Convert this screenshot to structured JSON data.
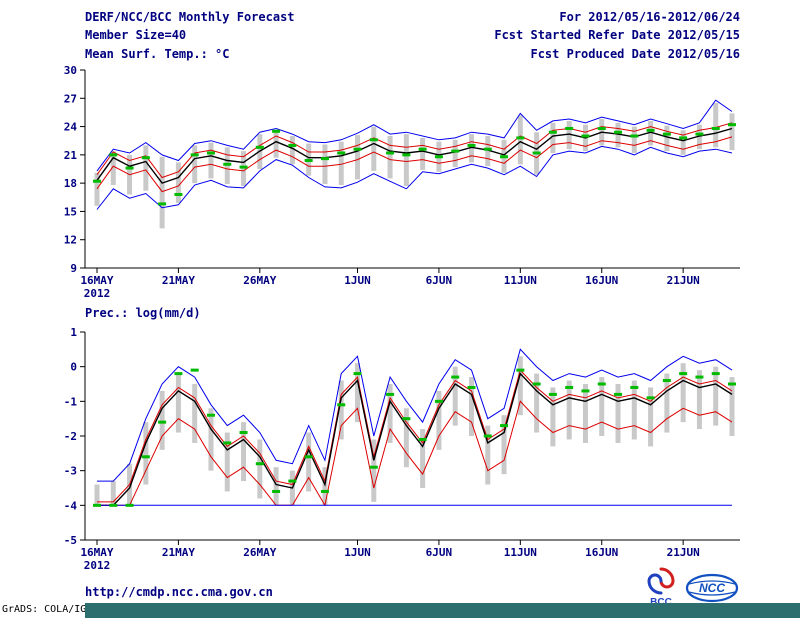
{
  "colors": {
    "text": "#000080",
    "footer_bar": "#2d6e6e",
    "axis": "#000000"
  },
  "header": {
    "title": "DERF/NCC/BCC Monthly Forecast",
    "member_size": "Member Size=40",
    "for_range": "For 2012/05/16-2012/06/24",
    "refer_date": "Fcst Started Refer Date 2012/05/15",
    "produced_date": "Fcst Produced Date 2012/05/16"
  },
  "footer": {
    "url": "http://cmdp.ncc.cma.gov.cn",
    "credit": "GrADS: COLA/IGES",
    "bcc_label": "BCC",
    "ncc_label": "NCC"
  },
  "chart_data": [
    {
      "type": "line",
      "title": "Mean Surf. Temp.: °C",
      "n_days": 40,
      "x_tick_labels": [
        "16MAY",
        "21MAY",
        "26MAY",
        "1JUN",
        "6JUN",
        "11JUN",
        "16JUN",
        "21JUN"
      ],
      "x_tick_positions": [
        0,
        5,
        10,
        16,
        21,
        26,
        31,
        36
      ],
      "x_year_label": "2012",
      "ylim": [
        9,
        30
      ],
      "yticks": [
        9,
        12,
        15,
        18,
        21,
        24,
        27,
        30
      ],
      "legend": "none",
      "grid": false,
      "bars": {
        "name": "member-spread",
        "color": "#c9c9c9",
        "low": [
          15.6,
          17.8,
          16.8,
          17.2,
          13.2,
          15.9,
          18.0,
          18.5,
          17.9,
          17.7,
          19.5,
          20.7,
          20.0,
          18.8,
          17.9,
          17.8,
          18.4,
          19.3,
          18.5,
          17.7,
          19.4,
          19.2,
          19.7,
          20.2,
          19.8,
          19.1,
          20.0,
          18.9,
          21.2,
          21.6,
          21.4,
          22.0,
          21.8,
          21.2,
          22.0,
          21.4,
          21.0,
          21.6,
          21.8,
          21.5
        ],
        "high": [
          19.1,
          21.4,
          21.0,
          22.0,
          20.8,
          20.2,
          22.0,
          22.3,
          21.8,
          21.4,
          23.2,
          23.6,
          23.0,
          22.2,
          22.1,
          22.4,
          23.1,
          24.0,
          23.0,
          23.2,
          22.8,
          22.4,
          22.6,
          23.2,
          23.0,
          22.6,
          25.2,
          23.4,
          24.4,
          24.6,
          24.2,
          24.8,
          24.4,
          24.0,
          24.6,
          24.1,
          23.6,
          24.2,
          26.5,
          25.4
        ]
      },
      "series": [
        {
          "name": "ensemble-max",
          "color": "#0000ee",
          "width": 1,
          "values": [
            19.3,
            21.6,
            21.2,
            22.3,
            21.0,
            20.4,
            22.2,
            22.5,
            22.0,
            21.6,
            23.4,
            23.8,
            23.2,
            22.4,
            22.3,
            22.6,
            23.3,
            24.2,
            23.2,
            23.4,
            23.0,
            22.6,
            22.8,
            23.4,
            23.2,
            22.8,
            25.4,
            23.6,
            24.6,
            24.8,
            24.4,
            25.0,
            24.6,
            24.2,
            24.8,
            24.3,
            23.8,
            24.4,
            26.8,
            25.6
          ]
        },
        {
          "name": "percentile-upper",
          "color": "#dd0000",
          "width": 1,
          "values": [
            18.9,
            21.3,
            20.4,
            20.9,
            18.6,
            19.2,
            21.2,
            21.5,
            21.0,
            20.8,
            22.0,
            23.0,
            22.3,
            21.3,
            21.3,
            21.5,
            22.0,
            22.8,
            22.0,
            21.8,
            22.0,
            21.6,
            21.9,
            22.4,
            22.1,
            21.6,
            23.0,
            22.2,
            23.6,
            23.8,
            23.4,
            24.0,
            23.8,
            23.5,
            24.0,
            23.5,
            23.1,
            23.6,
            23.9,
            24.4
          ]
        },
        {
          "name": "ensemble-mean",
          "color": "#000000",
          "width": 1.4,
          "values": [
            18.3,
            20.7,
            19.8,
            20.3,
            18.0,
            18.6,
            20.6,
            20.9,
            20.4,
            20.2,
            21.4,
            22.4,
            21.7,
            20.7,
            20.7,
            20.9,
            21.4,
            22.2,
            21.4,
            21.2,
            21.4,
            21.0,
            21.3,
            21.8,
            21.5,
            21.0,
            22.4,
            21.6,
            23.0,
            23.2,
            22.8,
            23.4,
            23.2,
            22.9,
            23.4,
            22.9,
            22.5,
            23.0,
            23.3,
            23.8
          ]
        },
        {
          "name": "percentile-lower",
          "color": "#dd0000",
          "width": 1,
          "values": [
            17.4,
            19.8,
            18.9,
            19.4,
            17.1,
            17.7,
            19.7,
            20.0,
            19.5,
            19.3,
            20.5,
            21.5,
            20.8,
            19.8,
            19.8,
            20.0,
            20.5,
            21.3,
            20.5,
            20.3,
            20.5,
            20.1,
            20.4,
            20.9,
            20.6,
            20.1,
            21.5,
            20.7,
            22.1,
            22.3,
            21.9,
            22.5,
            22.3,
            22.0,
            22.5,
            22.0,
            21.6,
            22.1,
            22.4,
            22.9
          ]
        },
        {
          "name": "ensemble-min",
          "color": "#0000ee",
          "width": 1,
          "values": [
            15.2,
            17.4,
            16.4,
            16.9,
            15.4,
            15.7,
            17.8,
            18.3,
            17.6,
            17.5,
            19.3,
            20.5,
            19.9,
            18.6,
            17.6,
            17.5,
            18.1,
            19.0,
            18.2,
            17.4,
            19.2,
            19.0,
            19.5,
            20.0,
            19.6,
            18.9,
            19.8,
            18.7,
            21.0,
            21.4,
            21.2,
            21.9,
            21.6,
            21.0,
            21.8,
            21.2,
            20.8,
            21.4,
            21.6,
            21.2
          ]
        }
      ],
      "dashes": {
        "name": "observation-dash",
        "color": "#00bb00",
        "values": [
          18.2,
          21.0,
          19.6,
          20.7,
          15.8,
          16.8,
          21.0,
          21.2,
          20.0,
          19.7,
          21.8,
          23.5,
          22.0,
          20.4,
          20.6,
          21.2,
          21.6,
          22.6,
          21.2,
          21.0,
          21.6,
          20.8,
          21.4,
          22.0,
          21.6,
          20.8,
          22.8,
          21.2,
          23.4,
          23.8,
          23.0,
          23.8,
          23.4,
          23.0,
          23.6,
          23.2,
          22.8,
          23.2,
          23.8,
          24.2
        ]
      }
    },
    {
      "type": "line",
      "title": "Prec.: log(mm/d)",
      "n_days": 40,
      "x_tick_labels": [
        "16MAY",
        "21MAY",
        "26MAY",
        "1JUN",
        "6JUN",
        "11JUN",
        "16JUN",
        "21JUN"
      ],
      "x_tick_positions": [
        0,
        5,
        10,
        16,
        21,
        26,
        31,
        36
      ],
      "x_year_label": "2012",
      "ylim": [
        -5,
        1
      ],
      "yticks": [
        -5,
        -4,
        -3,
        -2,
        -1,
        0,
        1
      ],
      "legend": "none",
      "grid": false,
      "bars": {
        "name": "member-spread",
        "color": "#c9c9c9",
        "low": [
          -4.0,
          -4.0,
          -4.0,
          -3.4,
          -2.4,
          -1.9,
          -2.2,
          -3.0,
          -3.6,
          -3.3,
          -3.8,
          -4.0,
          -4.0,
          -3.6,
          -4.0,
          -2.1,
          -1.6,
          -3.9,
          -2.2,
          -2.9,
          -3.5,
          -2.4,
          -1.7,
          -2.0,
          -3.4,
          -3.1,
          -1.4,
          -1.9,
          -2.3,
          -2.1,
          -2.2,
          -2.0,
          -2.2,
          -2.1,
          -2.3,
          -1.9,
          -1.6,
          -1.8,
          -1.7,
          -2.0
        ],
        "high": [
          -3.4,
          -3.3,
          -2.8,
          -1.6,
          -0.7,
          -0.2,
          -0.5,
          -1.2,
          -1.9,
          -1.6,
          -2.1,
          -2.9,
          -3.0,
          -1.9,
          -2.9,
          -0.4,
          0.1,
          -2.1,
          -0.5,
          -1.2,
          -1.8,
          -0.7,
          0.0,
          -0.3,
          -1.7,
          -1.4,
          0.3,
          -0.2,
          -0.6,
          -0.4,
          -0.5,
          -0.3,
          -0.5,
          -0.4,
          -0.6,
          -0.2,
          0.1,
          -0.1,
          0.0,
          -0.3
        ]
      },
      "series": [
        {
          "name": "ensemble-max",
          "color": "#0000ee",
          "width": 1,
          "values": [
            -3.3,
            -3.3,
            -2.8,
            -1.5,
            -0.5,
            0.0,
            -0.3,
            -1.1,
            -1.7,
            -1.4,
            -1.9,
            -2.7,
            -2.8,
            -1.7,
            -2.7,
            -0.2,
            0.3,
            -2.0,
            -0.3,
            -1.0,
            -1.6,
            -0.5,
            0.2,
            -0.1,
            -1.5,
            -1.2,
            0.5,
            0.0,
            -0.4,
            -0.2,
            -0.3,
            -0.1,
            -0.3,
            -0.2,
            -0.4,
            0.0,
            0.3,
            0.1,
            0.2,
            -0.1
          ]
        },
        {
          "name": "percentile-upper",
          "color": "#dd0000",
          "width": 1,
          "values": [
            -3.9,
            -3.9,
            -3.4,
            -2.1,
            -1.1,
            -0.6,
            -0.9,
            -1.7,
            -2.3,
            -2.0,
            -2.5,
            -3.3,
            -3.4,
            -2.3,
            -3.3,
            -0.8,
            -0.3,
            -2.6,
            -0.9,
            -1.6,
            -2.2,
            -1.1,
            -0.4,
            -0.7,
            -2.1,
            -1.8,
            -0.1,
            -0.6,
            -1.0,
            -0.8,
            -0.9,
            -0.7,
            -0.9,
            -0.8,
            -1.0,
            -0.6,
            -0.3,
            -0.5,
            -0.4,
            -0.7
          ]
        },
        {
          "name": "ensemble-mean",
          "color": "#000000",
          "width": 1.4,
          "values": [
            -4.0,
            -4.0,
            -3.5,
            -2.2,
            -1.2,
            -0.7,
            -1.0,
            -1.8,
            -2.4,
            -2.1,
            -2.6,
            -3.4,
            -3.5,
            -2.4,
            -3.4,
            -0.9,
            -0.4,
            -2.7,
            -1.0,
            -1.7,
            -2.3,
            -1.2,
            -0.5,
            -0.8,
            -2.2,
            -1.9,
            -0.2,
            -0.7,
            -1.1,
            -0.9,
            -1.0,
            -0.8,
            -1.0,
            -0.9,
            -1.1,
            -0.7,
            -0.4,
            -0.6,
            -0.5,
            -0.8
          ]
        },
        {
          "name": "percentile-lower",
          "color": "#dd0000",
          "width": 1,
          "values": [
            -4.0,
            -4.0,
            -4.0,
            -3.0,
            -2.0,
            -1.5,
            -1.8,
            -2.6,
            -3.2,
            -2.9,
            -3.4,
            -4.0,
            -4.0,
            -3.2,
            -4.0,
            -1.7,
            -1.2,
            -3.5,
            -1.8,
            -2.5,
            -3.1,
            -2.0,
            -1.3,
            -1.6,
            -3.0,
            -2.7,
            -1.0,
            -1.5,
            -1.9,
            -1.7,
            -1.8,
            -1.6,
            -1.8,
            -1.7,
            -1.9,
            -1.5,
            -1.2,
            -1.4,
            -1.3,
            -1.6
          ]
        },
        {
          "name": "ensemble-min",
          "color": "#0000ee",
          "width": 1,
          "values": [
            -4.0,
            -4.0,
            -4.0,
            -4.0,
            -4.0,
            -4.0,
            -4.0,
            -4.0,
            -4.0,
            -4.0,
            -4.0,
            -4.0,
            -4.0,
            -4.0,
            -4.0,
            -4.0,
            -4.0,
            -4.0,
            -4.0,
            -4.0,
            -4.0,
            -4.0,
            -4.0,
            -4.0,
            -4.0,
            -4.0,
            -4.0,
            -4.0,
            -4.0,
            -4.0,
            -4.0,
            -4.0,
            -4.0,
            -4.0,
            -4.0,
            -4.0,
            -4.0,
            -4.0,
            -4.0,
            -4.0
          ]
        }
      ],
      "dashes": {
        "name": "observation-dash",
        "color": "#00bb00",
        "values": [
          -4.0,
          -4.0,
          -4.0,
          -2.6,
          -1.6,
          -0.2,
          -0.1,
          -1.4,
          -2.2,
          -1.9,
          -2.8,
          -3.6,
          -3.3,
          -2.6,
          -3.6,
          -1.1,
          -0.2,
          -2.9,
          -0.8,
          -1.5,
          -2.1,
          -1.0,
          -0.3,
          -0.6,
          -2.0,
          -1.7,
          -0.1,
          -0.5,
          -0.8,
          -0.6,
          -0.7,
          -0.5,
          -0.8,
          -0.6,
          -0.9,
          -0.4,
          -0.2,
          -0.3,
          -0.2,
          -0.5
        ]
      }
    }
  ]
}
